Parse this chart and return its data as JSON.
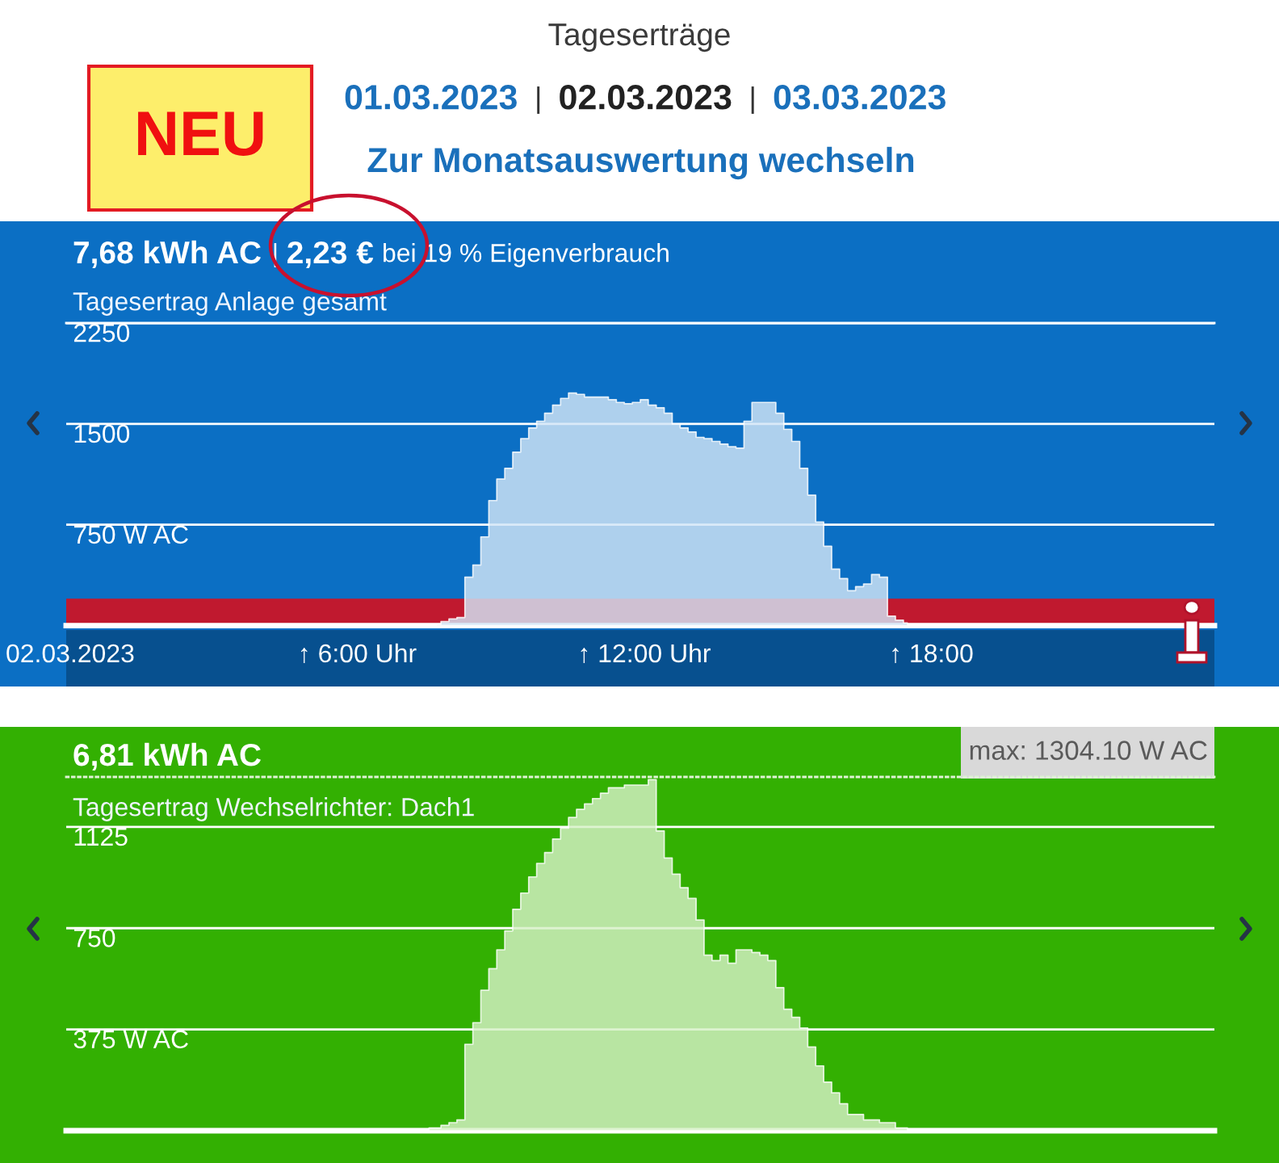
{
  "chart_data": [
    {
      "type": "other",
      "title": "Tageserträge",
      "annotations": [
        "NEU",
        "01.03.2023",
        "|",
        "02.03.2023",
        "|",
        "03.03.2023",
        "Zur Monatsauswertung wechseln"
      ]
    },
    {
      "type": "area",
      "title": "7,68 kWh AC",
      "subtitle": "Tagesertrag Anlage gesamt",
      "annotations": [
        "|",
        "2,23 €",
        "bei 19 % Eigenverbrauch"
      ],
      "categories": [
        "02.03.2023",
        null,
        null,
        null,
        null,
        null,
        null,
        null,
        null,
        null,
        null,
        null,
        null,
        null,
        null,
        null,
        null,
        null,
        null,
        null,
        null,
        null,
        null,
        null,
        null,
        null,
        null,
        null,
        null,
        null,
        null,
        null,
        null,
        null,
        null,
        null,
        "↑ 6:00 Uhr",
        null,
        null,
        null,
        null,
        null,
        null,
        null,
        null,
        null,
        null,
        null,
        null,
        null,
        null,
        null,
        null,
        null,
        null,
        null,
        null,
        null,
        null,
        null,
        null,
        null,
        null,
        null,
        null,
        null,
        null,
        null,
        null,
        null,
        null,
        null,
        "↑ 12:00 Uhr",
        null,
        null,
        null,
        null,
        null,
        null,
        null,
        null,
        null,
        null,
        null,
        null,
        null,
        null,
        null,
        null,
        null,
        null,
        null,
        null,
        null,
        null,
        null,
        null,
        null,
        null,
        null,
        null,
        null,
        null,
        null,
        null,
        null,
        null,
        null,
        "↑ 18:00",
        null,
        null,
        null,
        null,
        null,
        null,
        null,
        null,
        null,
        null,
        null,
        null,
        null,
        null,
        null,
        null,
        null,
        null,
        null,
        null,
        null,
        null,
        null,
        null,
        null,
        null,
        null,
        null,
        null,
        null,
        null,
        null,
        null,
        null,
        null
      ],
      "values": [
        null,
        null,
        null,
        null,
        null,
        null,
        null,
        null,
        null,
        null,
        null,
        null,
        null,
        null,
        null,
        null,
        null,
        null,
        null,
        null,
        null,
        null,
        null,
        null,
        null,
        null,
        null,
        null,
        null,
        null,
        null,
        null,
        null,
        null,
        null,
        null,
        null,
        null,
        null,
        null,
        null,
        null,
        null,
        null,
        null,
        null,
        10,
        30,
        50,
        60,
        360,
        450,
        660,
        930,
        1090,
        1170,
        1290,
        1390,
        1470,
        1520,
        1580,
        1640,
        1690,
        1730,
        1720,
        1700,
        1700,
        1700,
        1680,
        1660,
        1650,
        1660,
        1680,
        1640,
        1620,
        1580,
        1500,
        1470,
        1440,
        1400,
        1390,
        1370,
        1350,
        1330,
        1320,
        1520,
        1660,
        1660,
        1660,
        1580,
        1460,
        1370,
        1170,
        970,
        770,
        590,
        420,
        350,
        260,
        290,
        310,
        380,
        360,
        70,
        40,
        20,
        null,
        null,
        null,
        null,
        null,
        null,
        null,
        null,
        null,
        null,
        null,
        null,
        null,
        null,
        null,
        null,
        null,
        null,
        null,
        null,
        null,
        null,
        null,
        null,
        null,
        null,
        null,
        null,
        null,
        null,
        null,
        null,
        null,
        null,
        null,
        null,
        null,
        null
      ],
      "color": "#d2e5f6",
      "ylim": [
        0,
        2250
      ],
      "yticks": [
        {
          "value": 750,
          "label": "750 W AC"
        },
        1500,
        2250
      ],
      "grid": "y",
      "bands": [
        {
          "axis": "y",
          "from": 0,
          "to": 200,
          "color": "#c0192f"
        }
      ]
    },
    {
      "type": "area",
      "title": "6,81 kWh AC",
      "subtitle": "Tagesertrag Wechselrichter: Dach1",
      "annotations": [
        "max: 1304.10 W AC"
      ],
      "categories": [
        null,
        null,
        null,
        null,
        null,
        null,
        null,
        null,
        null,
        null,
        null,
        null,
        null,
        null,
        null,
        null,
        null,
        null,
        null,
        null,
        null,
        null,
        null,
        null,
        null,
        null,
        null,
        null,
        null,
        null,
        null,
        null,
        null,
        null,
        null,
        null,
        null,
        null,
        null,
        null,
        null,
        null,
        null,
        null,
        null,
        null,
        null,
        null,
        null,
        null,
        null,
        null,
        null,
        null,
        null,
        null,
        null,
        null,
        null,
        null,
        null,
        null,
        null,
        null,
        null,
        null,
        null,
        null,
        null,
        null,
        null,
        null,
        null,
        null,
        null,
        null,
        null,
        null,
        null,
        null,
        null,
        null,
        null,
        null,
        null,
        null,
        null,
        null,
        null,
        null,
        null,
        null,
        null,
        null,
        null,
        null,
        null,
        null,
        null,
        null,
        null,
        null,
        null,
        null,
        null,
        null,
        null,
        null,
        null,
        null,
        null,
        null,
        null,
        null,
        null,
        null,
        null,
        null,
        null,
        null,
        null,
        null,
        null,
        null,
        null,
        null,
        null,
        null,
        null,
        null,
        null,
        null,
        null,
        null,
        null,
        null,
        null,
        null,
        null,
        null,
        null,
        null,
        null,
        null
      ],
      "values": [
        null,
        null,
        null,
        null,
        null,
        null,
        null,
        null,
        null,
        null,
        null,
        null,
        null,
        null,
        null,
        null,
        null,
        null,
        null,
        null,
        null,
        null,
        null,
        null,
        null,
        null,
        null,
        null,
        null,
        null,
        null,
        null,
        null,
        null,
        null,
        null,
        null,
        null,
        null,
        null,
        null,
        null,
        null,
        null,
        null,
        10,
        10,
        20,
        30,
        40,
        320,
        400,
        520,
        600,
        670,
        740,
        820,
        880,
        940,
        990,
        1030,
        1080,
        1120,
        1160,
        1190,
        1210,
        1230,
        1250,
        1270,
        1270,
        1280,
        1280,
        1280,
        1300,
        1110,
        1010,
        950,
        900,
        860,
        780,
        650,
        630,
        650,
        620,
        670,
        670,
        660,
        650,
        630,
        530,
        450,
        420,
        380,
        310,
        240,
        180,
        140,
        100,
        60,
        60,
        40,
        40,
        30,
        30,
        10,
        10,
        null,
        null,
        null,
        null,
        null,
        null,
        null,
        null,
        null,
        null,
        null,
        null,
        null,
        null,
        null,
        null,
        null,
        null,
        null,
        null,
        null,
        null,
        null,
        null,
        null,
        null,
        null,
        null,
        null,
        null,
        null,
        null,
        null,
        null,
        null,
        null,
        null,
        null
      ],
      "color": "#d5f0c6",
      "ylim": [
        0,
        1310
      ],
      "yticks": [
        {
          "value": 375,
          "label": "375 W AC"
        },
        750,
        1125
      ],
      "grid": "y",
      "tick_labels": "y"
    }
  ]
}
